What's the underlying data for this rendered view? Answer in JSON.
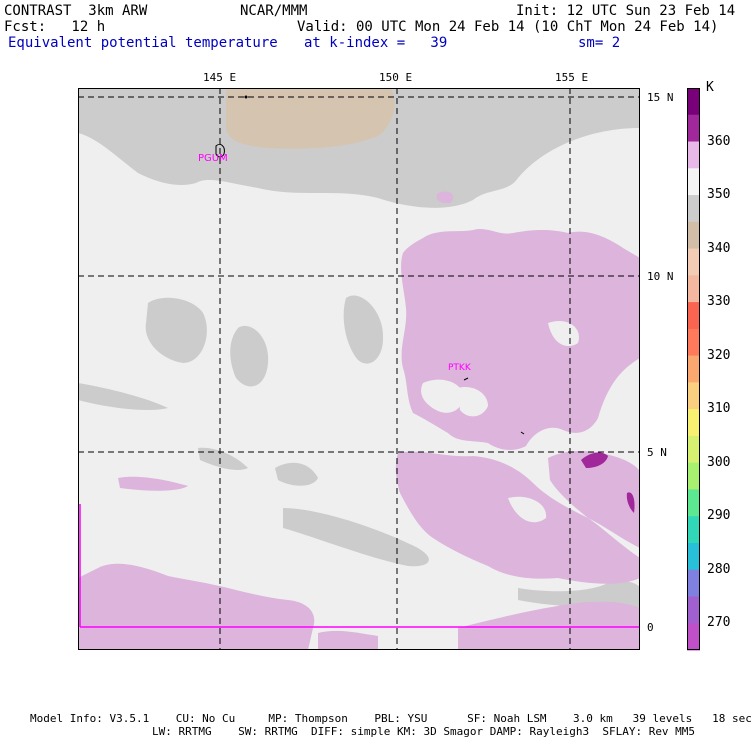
{
  "header": {
    "model": "CONTRAST  3km ARW",
    "org": "NCAR/MMM",
    "init": "Init: 12 UTC Sun 23 Feb 14",
    "fcst": "Fcst:   12 h",
    "valid": "Valid: 00 UTC Mon 24 Feb 14 (10 ChT Mon 24 Feb 14)",
    "field": "Equivalent potential temperature",
    "level": "at k-index =   39",
    "smooth": "sm= 2"
  },
  "axes": {
    "lon_labels": [
      "145 E",
      "150 E",
      "155 E"
    ],
    "lat_labels": [
      "15 N",
      "10 N",
      "5 N",
      "0"
    ]
  },
  "stations": [
    "PGUM",
    "PTKK"
  ],
  "colorbar": {
    "unit": "K",
    "labels": [
      "360",
      "350",
      "340",
      "330",
      "320",
      "310",
      "300",
      "290",
      "280",
      "270"
    ],
    "colors": [
      "#780078",
      "#a0289a",
      "#e8b8e8",
      "#f4f4f4",
      "#cccccc",
      "#d2bea8",
      "#f2ccb4",
      "#f4b8a0",
      "#fa6450",
      "#ff7a5a",
      "#fba870",
      "#fad080",
      "#f8f070",
      "#d6f070",
      "#a8f070",
      "#5ce890",
      "#30d8b8",
      "#28c0d8",
      "#8080e0",
      "#a060d0",
      "#c050c8"
    ],
    "map_colors": {
      "ocean": "#efefef",
      "gray": "#cccccc",
      "tan": "#d4c4b0",
      "pink": "#dcb4dc",
      "purple": "#a0289a",
      "magenta": "#ff00ff"
    }
  },
  "footer": {
    "line1": "Model Info: V3.5.1    CU: No Cu     MP: Thompson    PBL: YSU      SF: Noah LSM    3.0 km   39 levels   18 sec",
    "line2": "LW: RRTMG    SW: RRTMG  DIFF: simple KM: 3D Smagor DAMP: Rayleigh3  SFLAY: Rev MM5"
  }
}
